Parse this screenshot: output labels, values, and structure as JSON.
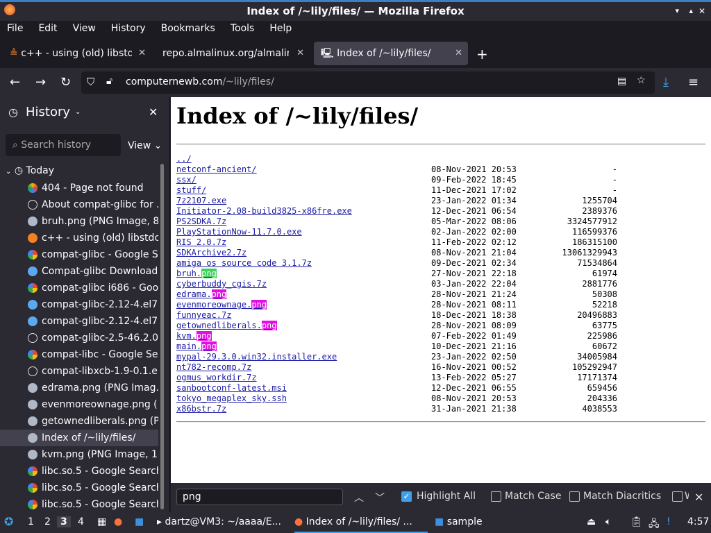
{
  "window": {
    "title": "Index of /~lily/files/ — Mozilla Firefox"
  },
  "menu": [
    "File",
    "Edit",
    "View",
    "History",
    "Bookmarks",
    "Tools",
    "Help"
  ],
  "tabs": [
    {
      "label": "c++ - using (old) libstdc++"
    },
    {
      "label": "repo.almalinux.org/almalinux"
    },
    {
      "label": "Index of /~lily/files/"
    }
  ],
  "url": {
    "domain": "computernewb.com",
    "path": "/~lily/files/"
  },
  "sidebar": {
    "title": "History",
    "search_placeholder": "Search history",
    "view_label": "View",
    "group": "Today",
    "items": [
      {
        "label": "404 - Page not found",
        "icon": "globe-colorful"
      },
      {
        "label": "About compat-glibc for ...",
        "icon": "globe"
      },
      {
        "label": "bruh.png (PNG Image, 8...",
        "icon": "computer"
      },
      {
        "label": "c++ - using (old) libstdc...",
        "icon": "stackoverflow"
      },
      {
        "label": "compat-glibc - Google S...",
        "icon": "google"
      },
      {
        "label": "Compat-glibc Download ...",
        "icon": "dot"
      },
      {
        "label": "compat-glibc i686 - Goo...",
        "icon": "google"
      },
      {
        "label": "compat-glibc-2.12-4.el7...",
        "icon": "dot"
      },
      {
        "label": "compat-glibc-2.12-4.el7...",
        "icon": "dot"
      },
      {
        "label": "compat-glibc-2.5-46.2.0...",
        "icon": "globe"
      },
      {
        "label": "compat-libc - Google Se...",
        "icon": "google"
      },
      {
        "label": "compat-libxcb-1.9-0.1.el...",
        "icon": "globe"
      },
      {
        "label": "edrama.png (PNG Imag...",
        "icon": "computer"
      },
      {
        "label": "evenmoreownage.png (...",
        "icon": "computer"
      },
      {
        "label": "getownedliberals.png (P...",
        "icon": "computer"
      },
      {
        "label": "Index of /~lily/files/",
        "icon": "computer",
        "selected": true
      },
      {
        "label": "kvm.png (PNG Image, 1...",
        "icon": "computer"
      },
      {
        "label": "libc.so.5 - Google Search",
        "icon": "google"
      },
      {
        "label": "libc.so.5 - Google Search",
        "icon": "google"
      },
      {
        "label": "libc.so.5 - Google Search",
        "icon": "google"
      }
    ]
  },
  "page": {
    "heading": "Index of /~lily/files/",
    "entries": [
      {
        "name": "../",
        "date": "",
        "size": ""
      },
      {
        "name": "netconf-ancient/",
        "date": "08-Nov-2021 20:53",
        "size": "-"
      },
      {
        "name": "ssx/",
        "date": "09-Feb-2022 18:45",
        "size": "-"
      },
      {
        "name": "stuff/",
        "date": "11-Dec-2021 17:02",
        "size": "-"
      },
      {
        "name": "7z2107.exe",
        "date": "23-Jan-2022 01:34",
        "size": "1255704"
      },
      {
        "name": "Initiator-2.08-build3825-x86fre.exe",
        "date": "12-Dec-2021 06:54",
        "size": "2389376"
      },
      {
        "name": "PS2SDKA.7z",
        "date": "05-Mar-2022 08:06",
        "size": "3324577912"
      },
      {
        "name": "PlayStationNow-11.7.0.exe",
        "date": "02-Jan-2022 02:00",
        "size": "116599376"
      },
      {
        "name": "RIS 2.0.7z",
        "date": "11-Feb-2022 02:12",
        "size": "186315100"
      },
      {
        "name": "SDKArchive2.7z",
        "date": "08-Nov-2021 21:04",
        "size": "13061329943"
      },
      {
        "name": "amiga os source code 3.1.7z",
        "date": "09-Dec-2021 02:34",
        "size": "71534864"
      },
      {
        "name": "bruh.png",
        "date": "27-Nov-2021 22:18",
        "size": "61974",
        "current": true
      },
      {
        "name": "cyberbuddy_cgis.7z",
        "date": "03-Jan-2022 22:04",
        "size": "2881776"
      },
      {
        "name": "edrama.png",
        "date": "28-Nov-2021 21:24",
        "size": "50308"
      },
      {
        "name": "evenmoreownage.png",
        "date": "28-Nov-2021 08:11",
        "size": "52218"
      },
      {
        "name": "funnyeac.7z",
        "date": "18-Dec-2021 18:38",
        "size": "20496883"
      },
      {
        "name": "getownedliberals.png",
        "date": "28-Nov-2021 08:09",
        "size": "63775"
      },
      {
        "name": "kvm.png",
        "date": "07-Feb-2022 01:49",
        "size": "225986"
      },
      {
        "name": "main.png",
        "date": "10-Dec-2021 21:16",
        "size": "60672"
      },
      {
        "name": "mypal-29.3.0.win32.installer.exe",
        "date": "23-Jan-2022 02:50",
        "size": "34005984"
      },
      {
        "name": "nt782-recomp.7z",
        "date": "16-Nov-2021 00:52",
        "size": "105292947"
      },
      {
        "name": "ogmus_workdir.7z",
        "date": "13-Feb-2022 05:27",
        "size": "17171374"
      },
      {
        "name": "sanbootconf-latest.msi",
        "date": "12-Dec-2021 06:55",
        "size": "659456"
      },
      {
        "name": "tokyo_megaplex_sky.ssh",
        "date": "08-Nov-2021 20:53",
        "size": "204336"
      },
      {
        "name": "x86bstr.7z",
        "date": "31-Jan-2021 21:38",
        "size": "4038553"
      }
    ]
  },
  "findbar": {
    "query": "png",
    "highlight_all": "Highlight All",
    "highlight_all_checked": true,
    "match_case": "Match Case",
    "match_diacritics": "Match Diacritics",
    "whole_words": "W"
  },
  "taskbar": {
    "workspaces": [
      "1",
      "2",
      "3",
      "4"
    ],
    "active_workspace": "3",
    "tasks": [
      {
        "label": "dartz@VM3: ~/aaaa/E..."
      },
      {
        "label": "Index of /~lily/files/ ..."
      },
      {
        "label": "sample"
      }
    ],
    "clock": "4:57"
  },
  "colors": {
    "highlight": "#e20fe2",
    "current_match": "#3ed05a",
    "link": "#1a1aa6",
    "accent": "#3da1ea"
  }
}
